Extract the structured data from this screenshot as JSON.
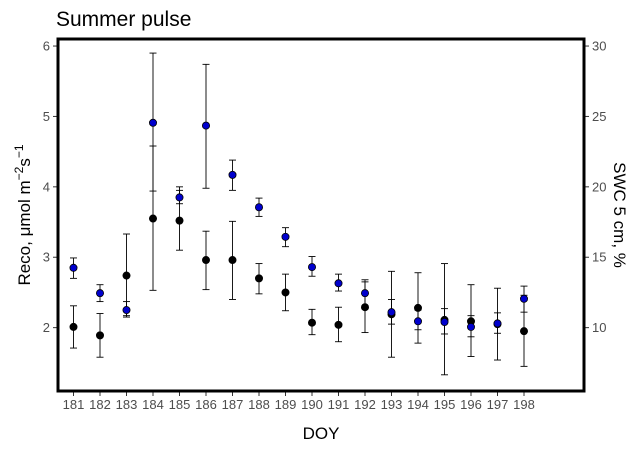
{
  "chart_data": {
    "type": "scatter",
    "title": "Summer pulse",
    "xlabel": "DOY",
    "ylabel_left": {
      "prefix": "Reco, ",
      "mu": "μ",
      "unit": "mol m",
      "sup1": "−2",
      "s": "s",
      "sup2": "−1"
    },
    "ylabel_right": {
      "text": "SWC 5 cm, %"
    },
    "categories": [
      "181",
      "182",
      "183",
      "184",
      "185",
      "186",
      "187",
      "188",
      "189",
      "190",
      "191",
      "192",
      "193",
      "194",
      "195",
      "196",
      "197",
      "198"
    ],
    "y_left_range": [
      1.1,
      6.1
    ],
    "y_left_ticks": [
      2,
      3,
      4,
      5,
      6
    ],
    "y_right_range": [
      5.5,
      30.5
    ],
    "y_right_ticks": [
      10,
      15,
      20,
      25,
      30
    ],
    "grid": false,
    "series": [
      {
        "axis": "left",
        "color": "#000000",
        "values": [
          2.01,
          1.89,
          2.74,
          3.55,
          3.52,
          2.96,
          2.96,
          2.7,
          2.5,
          2.07,
          2.04,
          2.29,
          2.19,
          2.28,
          2.11,
          2.09,
          2.05,
          1.95
        ],
        "err_low": [
          1.71,
          1.58,
          2.17,
          2.53,
          3.1,
          2.54,
          2.4,
          2.48,
          2.24,
          1.9,
          1.8,
          1.93,
          1.58,
          1.78,
          1.33,
          1.59,
          1.54,
          1.45
        ],
        "err_high": [
          2.31,
          2.2,
          3.33,
          4.58,
          3.95,
          3.37,
          3.51,
          2.91,
          2.76,
          2.26,
          2.29,
          2.65,
          2.8,
          2.78,
          2.91,
          2.61,
          2.56,
          2.46
        ]
      },
      {
        "axis": "right",
        "color": "#0000cd",
        "values": [
          14.25,
          12.45,
          11.25,
          24.55,
          19.25,
          24.35,
          20.85,
          18.55,
          16.45,
          14.3,
          13.15,
          12.45,
          11.1,
          10.45,
          10.4,
          10.05,
          10.3,
          12.05
        ],
        "err_low": [
          13.5,
          11.85,
          10.75,
          19.7,
          18.8,
          19.9,
          19.75,
          17.9,
          15.75,
          13.65,
          12.6,
          11.55,
          10.25,
          9.85,
          9.55,
          9.35,
          9.6,
          11.1
        ],
        "err_high": [
          14.95,
          13.05,
          11.85,
          29.5,
          20.0,
          28.7,
          21.9,
          19.2,
          17.1,
          15.05,
          13.8,
          13.4,
          12.0,
          11.25,
          11.35,
          10.85,
          11.05,
          12.95
        ]
      }
    ]
  }
}
